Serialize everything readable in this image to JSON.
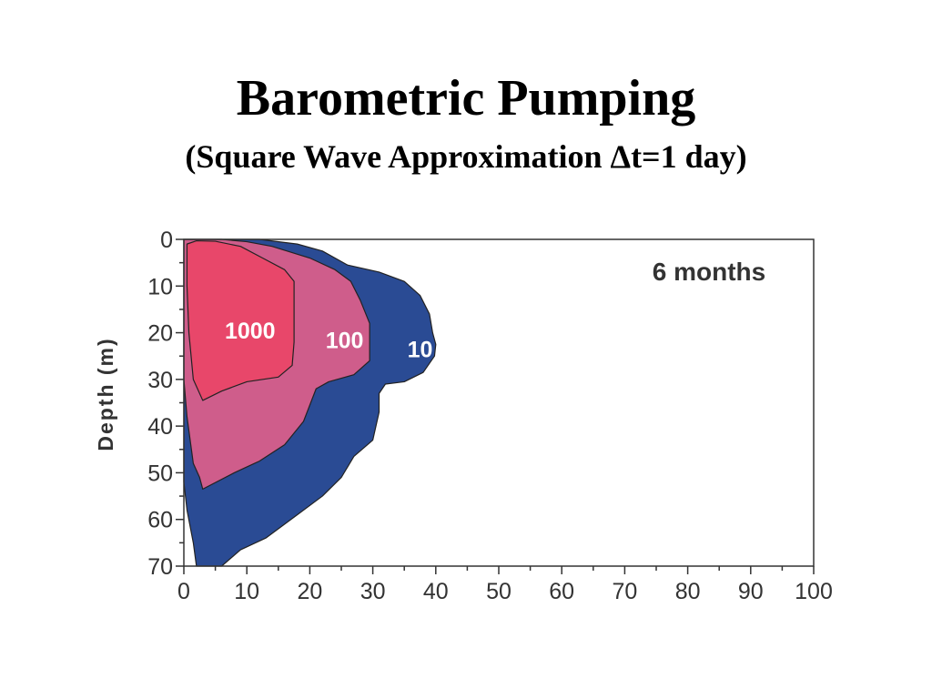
{
  "slide": {
    "title": "Barometric Pumping",
    "subtitle": "(Square Wave Approximation Δt=1 day)"
  },
  "chart_data": {
    "type": "contour",
    "xlabel": "",
    "ylabel": "Depth (m)",
    "xlim": [
      0,
      100
    ],
    "ylim": [
      0,
      70
    ],
    "y_inverted": true,
    "x_ticks": [
      0,
      10,
      20,
      30,
      40,
      50,
      60,
      70,
      80,
      90,
      100
    ],
    "y_ticks": [
      0,
      10,
      20,
      30,
      40,
      50,
      60,
      70
    ],
    "annotation": "6 months",
    "contours": [
      {
        "label": "10",
        "color": "#2a4b94",
        "label_pos": [
          35.5,
          23.5
        ],
        "points": [
          [
            0,
            0
          ],
          [
            12,
            0
          ],
          [
            18,
            1
          ],
          [
            22,
            2.5
          ],
          [
            26,
            5.5
          ],
          [
            31,
            7
          ],
          [
            35,
            9
          ],
          [
            37.5,
            12
          ],
          [
            39,
            16
          ],
          [
            39.5,
            20
          ],
          [
            40,
            22.5
          ],
          [
            39.8,
            25
          ],
          [
            38,
            28.5
          ],
          [
            35,
            30.5
          ],
          [
            32,
            31
          ],
          [
            31,
            33
          ],
          [
            31,
            37
          ],
          [
            30,
            43
          ],
          [
            27,
            46.5
          ],
          [
            25,
            51
          ],
          [
            22,
            55
          ],
          [
            18,
            59
          ],
          [
            13,
            64
          ],
          [
            9,
            66.5
          ],
          [
            6,
            70
          ],
          [
            2,
            70
          ],
          [
            1.5,
            65
          ],
          [
            0.5,
            58
          ],
          [
            0,
            52
          ]
        ]
      },
      {
        "label": "100",
        "color": "#cf5d8b",
        "label_pos": [
          22.5,
          21.5
        ],
        "points": [
          [
            0,
            0
          ],
          [
            6,
            0
          ],
          [
            10,
            0.5
          ],
          [
            14,
            1.5
          ],
          [
            20,
            4
          ],
          [
            24,
            6.5
          ],
          [
            26.5,
            9
          ],
          [
            28,
            13
          ],
          [
            29.5,
            18
          ],
          [
            29.5,
            22
          ],
          [
            29.5,
            26
          ],
          [
            27,
            29
          ],
          [
            23,
            30.5
          ],
          [
            21,
            32
          ],
          [
            19,
            39
          ],
          [
            16,
            44
          ],
          [
            12,
            47.5
          ],
          [
            8,
            50
          ],
          [
            3,
            53.5
          ],
          [
            2.5,
            51
          ],
          [
            1.5,
            48
          ],
          [
            0.5,
            38
          ],
          [
            0,
            30
          ]
        ]
      },
      {
        "label": "1000",
        "color": "#e8476a",
        "label_pos": [
          6.5,
          19.5
        ],
        "points": [
          [
            0.5,
            1
          ],
          [
            2,
            0.3
          ],
          [
            5,
            0.4
          ],
          [
            9,
            1.5
          ],
          [
            12.5,
            4
          ],
          [
            16,
            6.5
          ],
          [
            17.5,
            9
          ],
          [
            17.5,
            14
          ],
          [
            17.5,
            18
          ],
          [
            17.5,
            22
          ],
          [
            17.2,
            27
          ],
          [
            15,
            29.5
          ],
          [
            10,
            30.5
          ],
          [
            6,
            32.5
          ],
          [
            3,
            34.5
          ],
          [
            1.5,
            30
          ],
          [
            0.8,
            20
          ],
          [
            0.5,
            10
          ]
        ]
      }
    ]
  }
}
